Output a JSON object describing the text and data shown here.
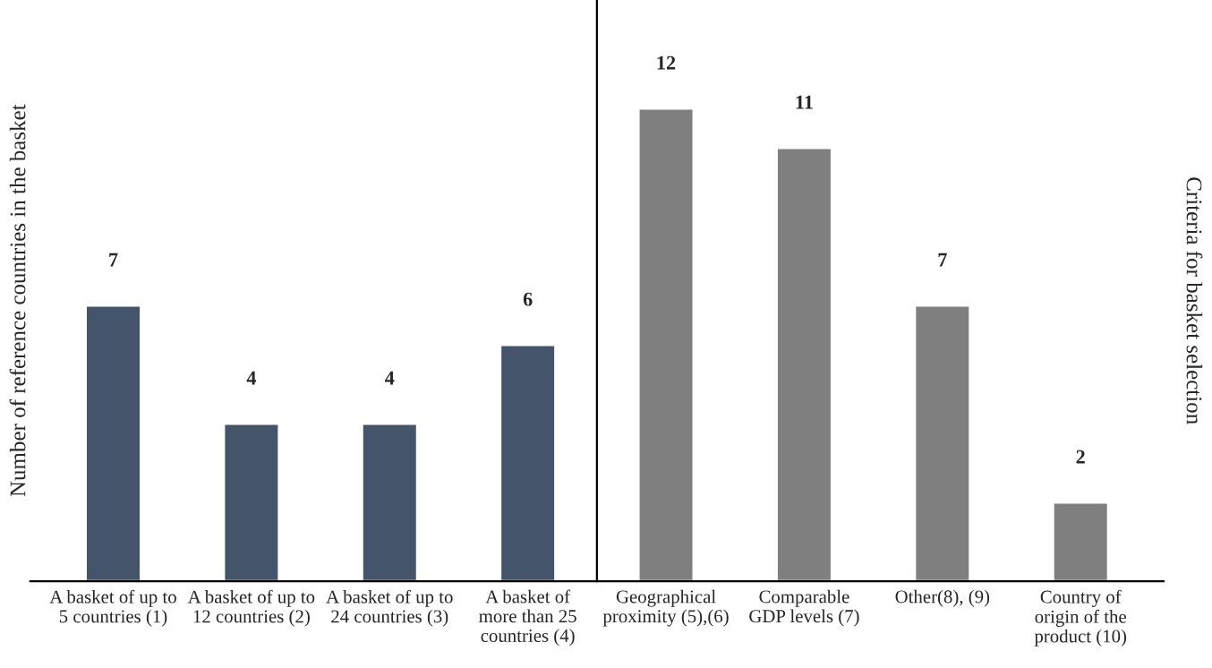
{
  "chart_data": {
    "type": "bar",
    "categories": [
      "A basket of up to\n5 countries (1)",
      "A basket of up to\n12 countries (2)",
      "A basket of up to\n24 countries (3)",
      "A basket of\nmore than 25\ncountries (4)",
      "Geographical\nproximity (5),(6)",
      "Comparable\nGDP levels (7)",
      "Other(8), (9)",
      "Country of\norigin of the\nproduct (10)"
    ],
    "values": [
      7,
      4,
      4,
      6,
      12,
      11,
      7,
      2
    ],
    "colors": [
      "#44546a",
      "#44546a",
      "#44546a",
      "#44546a",
      "#7f7f7f",
      "#7f7f7f",
      "#7f7f7f",
      "#7f7f7f"
    ],
    "ylabel": "Number of reference countries in the basket",
    "y2label": "Criteria for basket selection",
    "ylim": [
      0,
      14.75
    ],
    "data_labels": true
  }
}
